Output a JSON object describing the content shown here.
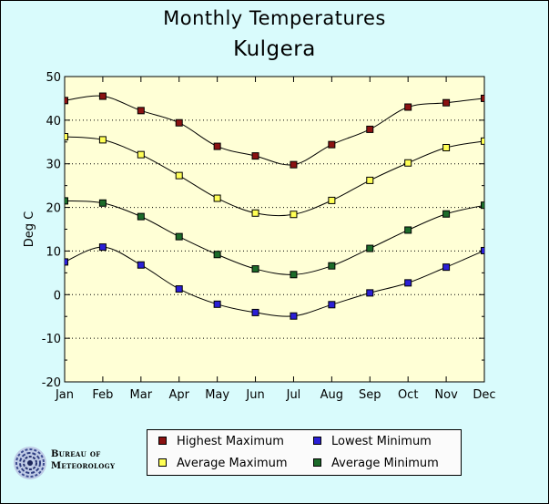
{
  "chart_data": {
    "type": "line",
    "title": "Monthly Temperatures",
    "subtitle": "Kulgera",
    "ylabel": "Deg C",
    "xlabel": "",
    "categories": [
      "Jan",
      "Feb",
      "Mar",
      "Apr",
      "May",
      "Jun",
      "Jul",
      "Aug",
      "Sep",
      "Oct",
      "Nov",
      "Dec"
    ],
    "ylim": [
      -20,
      50
    ],
    "yticks": [
      -20,
      -10,
      0,
      10,
      20,
      30,
      40,
      50
    ],
    "ytick_labels": [
      "-20",
      "-10",
      "0",
      "10",
      "20",
      "30",
      "40",
      "50"
    ],
    "grid": "horizontal dotted",
    "legend": "bottom",
    "series": [
      {
        "name": "Highest Maximum",
        "color": "#8b1212",
        "values": [
          44.5,
          45.5,
          42.2,
          39.4,
          34.0,
          31.8,
          29.8,
          34.4,
          37.9,
          43.0,
          44.0,
          45.0
        ]
      },
      {
        "name": "Lowest Minimum",
        "color": "#2b1fd6",
        "values": [
          7.5,
          10.9,
          6.8,
          1.3,
          -2.2,
          -4.1,
          -4.9,
          -2.3,
          0.4,
          2.7,
          6.3,
          10.1
        ]
      },
      {
        "name": "Average Maximum",
        "color": "#ffff55",
        "values": [
          36.2,
          35.5,
          32.1,
          27.3,
          22.1,
          18.7,
          18.4,
          21.6,
          26.2,
          30.2,
          33.7,
          35.2
        ]
      },
      {
        "name": "Average Minimum",
        "color": "#1c6b2a",
        "values": [
          21.5,
          21.0,
          17.9,
          13.3,
          9.2,
          5.9,
          4.6,
          6.6,
          10.6,
          14.8,
          18.5,
          20.5
        ]
      }
    ]
  },
  "logo": {
    "line1": "Bureau of",
    "line2": "Meteorology"
  }
}
